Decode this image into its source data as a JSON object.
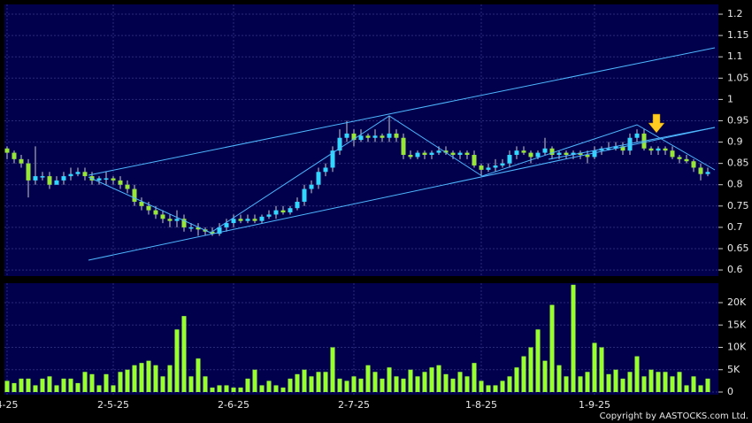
{
  "chart_data": {
    "type": "candlestick",
    "categories": [
      "4-25",
      null,
      null,
      null,
      null,
      null,
      null,
      null,
      null,
      null,
      null,
      null,
      null,
      null,
      null,
      "2-5-25",
      null,
      null,
      null,
      null,
      null,
      null,
      null,
      null,
      null,
      null,
      null,
      null,
      null,
      null,
      null,
      null,
      "2-6-25",
      null,
      null,
      null,
      null,
      null,
      null,
      null,
      null,
      null,
      null,
      null,
      null,
      null,
      null,
      null,
      null,
      "2-7-25",
      null,
      null,
      null,
      null,
      null,
      null,
      null,
      null,
      null,
      null,
      null,
      null,
      null,
      null,
      null,
      null,
      null,
      "1-8-25",
      null,
      null,
      null,
      null,
      null,
      null,
      null,
      null,
      null,
      null,
      null,
      null,
      null,
      null,
      null,
      "1-9-25",
      null,
      null,
      null,
      null,
      null,
      null,
      null,
      null,
      null,
      null,
      null,
      null,
      null,
      null,
      null,
      null
    ],
    "ohlc": [
      [
        0.885,
        0.89,
        0.86,
        0.875
      ],
      [
        0.875,
        0.88,
        0.85,
        0.86
      ],
      [
        0.86,
        0.87,
        0.84,
        0.85
      ],
      [
        0.85,
        0.86,
        0.77,
        0.81
      ],
      [
        0.81,
        0.89,
        0.8,
        0.82
      ],
      [
        0.82,
        0.83,
        0.81,
        0.82
      ],
      [
        0.82,
        0.83,
        0.79,
        0.8
      ],
      [
        0.8,
        0.82,
        0.8,
        0.81
      ],
      [
        0.81,
        0.83,
        0.8,
        0.82
      ],
      [
        0.82,
        0.84,
        0.81,
        0.825
      ],
      [
        0.825,
        0.84,
        0.82,
        0.83
      ],
      [
        0.83,
        0.84,
        0.81,
        0.82
      ],
      [
        0.82,
        0.83,
        0.8,
        0.81
      ],
      [
        0.81,
        0.82,
        0.8,
        0.815
      ],
      [
        0.815,
        0.83,
        0.8,
        0.815
      ],
      [
        0.815,
        0.82,
        0.8,
        0.81
      ],
      [
        0.81,
        0.82,
        0.79,
        0.8
      ],
      [
        0.8,
        0.81,
        0.78,
        0.79
      ],
      [
        0.79,
        0.8,
        0.75,
        0.76
      ],
      [
        0.76,
        0.77,
        0.74,
        0.75
      ],
      [
        0.75,
        0.76,
        0.73,
        0.74
      ],
      [
        0.74,
        0.75,
        0.72,
        0.73
      ],
      [
        0.73,
        0.74,
        0.71,
        0.72
      ],
      [
        0.72,
        0.73,
        0.7,
        0.715
      ],
      [
        0.715,
        0.74,
        0.7,
        0.72
      ],
      [
        0.72,
        0.73,
        0.69,
        0.7
      ],
      [
        0.7,
        0.71,
        0.69,
        0.7
      ],
      [
        0.7,
        0.71,
        0.68,
        0.695
      ],
      [
        0.695,
        0.7,
        0.68,
        0.69
      ],
      [
        0.69,
        0.7,
        0.68,
        0.685
      ],
      [
        0.685,
        0.71,
        0.68,
        0.7
      ],
      [
        0.7,
        0.72,
        0.69,
        0.71
      ],
      [
        0.71,
        0.73,
        0.7,
        0.72
      ],
      [
        0.72,
        0.73,
        0.71,
        0.715
      ],
      [
        0.715,
        0.73,
        0.71,
        0.72
      ],
      [
        0.72,
        0.73,
        0.71,
        0.715
      ],
      [
        0.715,
        0.73,
        0.71,
        0.725
      ],
      [
        0.725,
        0.74,
        0.72,
        0.73
      ],
      [
        0.73,
        0.75,
        0.72,
        0.74
      ],
      [
        0.74,
        0.75,
        0.73,
        0.735
      ],
      [
        0.735,
        0.75,
        0.73,
        0.745
      ],
      [
        0.745,
        0.77,
        0.74,
        0.76
      ],
      [
        0.76,
        0.8,
        0.75,
        0.79
      ],
      [
        0.79,
        0.81,
        0.78,
        0.8
      ],
      [
        0.8,
        0.84,
        0.79,
        0.83
      ],
      [
        0.83,
        0.85,
        0.82,
        0.84
      ],
      [
        0.84,
        0.89,
        0.83,
        0.88
      ],
      [
        0.88,
        0.93,
        0.87,
        0.91
      ],
      [
        0.91,
        0.95,
        0.9,
        0.92
      ],
      [
        0.92,
        0.93,
        0.89,
        0.905
      ],
      [
        0.905,
        0.93,
        0.9,
        0.915
      ],
      [
        0.915,
        0.92,
        0.9,
        0.91
      ],
      [
        0.91,
        0.93,
        0.9,
        0.915
      ],
      [
        0.915,
        0.92,
        0.9,
        0.91
      ],
      [
        0.91,
        0.96,
        0.9,
        0.92
      ],
      [
        0.92,
        0.93,
        0.9,
        0.91
      ],
      [
        0.91,
        0.92,
        0.86,
        0.87
      ],
      [
        0.87,
        0.88,
        0.86,
        0.865
      ],
      [
        0.865,
        0.88,
        0.86,
        0.875
      ],
      [
        0.875,
        0.88,
        0.86,
        0.87
      ],
      [
        0.87,
        0.88,
        0.86,
        0.875
      ],
      [
        0.875,
        0.89,
        0.87,
        0.88
      ],
      [
        0.88,
        0.89,
        0.87,
        0.875
      ],
      [
        0.875,
        0.88,
        0.86,
        0.87
      ],
      [
        0.87,
        0.88,
        0.86,
        0.875
      ],
      [
        0.875,
        0.88,
        0.86,
        0.87
      ],
      [
        0.87,
        0.88,
        0.84,
        0.845
      ],
      [
        0.845,
        0.85,
        0.82,
        0.835
      ],
      [
        0.835,
        0.85,
        0.83,
        0.84
      ],
      [
        0.84,
        0.86,
        0.83,
        0.845
      ],
      [
        0.845,
        0.86,
        0.84,
        0.85
      ],
      [
        0.85,
        0.88,
        0.84,
        0.87
      ],
      [
        0.87,
        0.89,
        0.86,
        0.88
      ],
      [
        0.88,
        0.89,
        0.87,
        0.875
      ],
      [
        0.875,
        0.88,
        0.85,
        0.865
      ],
      [
        0.865,
        0.88,
        0.86,
        0.875
      ],
      [
        0.875,
        0.91,
        0.87,
        0.885
      ],
      [
        0.885,
        0.89,
        0.86,
        0.87
      ],
      [
        0.87,
        0.88,
        0.86,
        0.875
      ],
      [
        0.875,
        0.88,
        0.86,
        0.87
      ],
      [
        0.87,
        0.88,
        0.86,
        0.875
      ],
      [
        0.875,
        0.88,
        0.86,
        0.87
      ],
      [
        0.87,
        0.88,
        0.85,
        0.865
      ],
      [
        0.865,
        0.89,
        0.86,
        0.88
      ],
      [
        0.88,
        0.89,
        0.87,
        0.885
      ],
      [
        0.885,
        0.9,
        0.88,
        0.885
      ],
      [
        0.885,
        0.9,
        0.88,
        0.89
      ],
      [
        0.89,
        0.9,
        0.87,
        0.88
      ],
      [
        0.88,
        0.92,
        0.87,
        0.91
      ],
      [
        0.91,
        0.93,
        0.9,
        0.92
      ],
      [
        0.92,
        0.93,
        0.88,
        0.885
      ],
      [
        0.885,
        0.89,
        0.87,
        0.88
      ],
      [
        0.88,
        0.89,
        0.87,
        0.885
      ],
      [
        0.885,
        0.89,
        0.87,
        0.88
      ],
      [
        0.88,
        0.89,
        0.86,
        0.865
      ],
      [
        0.865,
        0.87,
        0.85,
        0.86
      ],
      [
        0.86,
        0.87,
        0.85,
        0.855
      ],
      [
        0.855,
        0.86,
        0.83,
        0.84
      ],
      [
        0.84,
        0.85,
        0.81,
        0.825
      ],
      [
        0.825,
        0.84,
        0.82,
        0.83
      ]
    ],
    "volume": [
      2500,
      2000,
      3000,
      3000,
      1500,
      3000,
      3500,
      1500,
      3000,
      3000,
      2000,
      4500,
      4000,
      1500,
      4000,
      1500,
      4500,
      5000,
      6000,
      6500,
      7000,
      6000,
      3500,
      6000,
      14000,
      17000,
      3500,
      7500,
      3500,
      1000,
      1500,
      1500,
      1000,
      1000,
      3000,
      5000,
      1500,
      2500,
      1500,
      1000,
      3000,
      4000,
      5000,
      3500,
      4500,
      4500,
      10000,
      3000,
      2500,
      3500,
      3000,
      6000,
      4500,
      3000,
      5500,
      3500,
      3000,
      5000,
      3500,
      4500,
      5500,
      6000,
      4000,
      3000,
      4500,
      3500,
      6500,
      2500,
      1500,
      1500,
      2500,
      3500,
      5500,
      8000,
      10000,
      14000,
      7000,
      19500,
      6000,
      3500,
      24000,
      3500,
      4500,
      11000,
      10000,
      4000,
      5000,
      3000,
      4500,
      8000,
      3500,
      5000,
      4500,
      4500,
      3500,
      4500,
      1500,
      3500,
      1500,
      3000
    ],
    "up_color": "#33d6ff",
    "down_color": "#99e63a",
    "volume_color": "#99ff33",
    "ylim": [
      0.58,
      1.22
    ],
    "yticks": [
      0.6,
      0.65,
      0.7,
      0.75,
      0.8,
      0.85,
      0.9,
      0.95,
      1,
      1.05,
      1.1,
      1.15,
      1.2
    ],
    "volume_ylim": [
      0,
      24000
    ],
    "volume_yticks": [
      0,
      {
        "value": 5000,
        "label": "5K"
      },
      {
        "value": 10000,
        "label": "10K"
      },
      {
        "value": 15000,
        "label": "15K"
      },
      {
        "value": 20000,
        "label": "20K"
      }
    ],
    "grid": true,
    "copyright": "Copyright by AASTOCKS.com Ltd."
  }
}
